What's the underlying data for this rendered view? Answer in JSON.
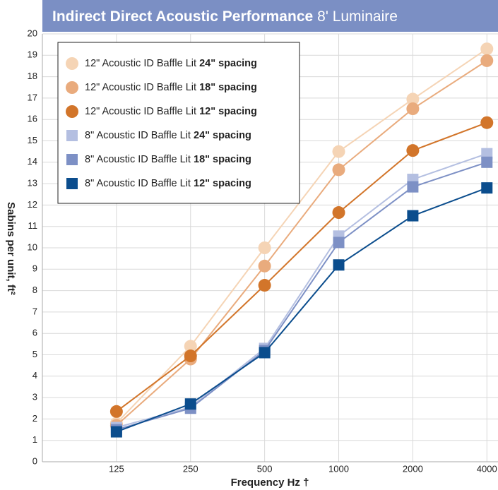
{
  "chart_data": {
    "type": "line",
    "title": "Indirect Direct Acoustic Performance",
    "subtitle": "8' Luminaire",
    "x_label": "Frequency Hz †",
    "y_label": "Sabins per unit, ft²",
    "categories": [
      "125",
      "250",
      "500",
      "1000",
      "2000",
      "4000"
    ],
    "ylim": [
      0,
      20
    ],
    "yticks": [
      0,
      1,
      2,
      3,
      4,
      5,
      6,
      7,
      8,
      9,
      10,
      11,
      12,
      13,
      14,
      15,
      16,
      17,
      18,
      19,
      20
    ],
    "grid": true,
    "legend": "upper left",
    "series": [
      {
        "name": "12\" Acoustic ID Baffle Lit 24\" spacing",
        "color": "#f5d4b5",
        "marker": "circle",
        "values": [
          1.8,
          5.4,
          10.0,
          14.5,
          16.95,
          19.3
        ]
      },
      {
        "name": "12\" Acoustic ID Baffle Lit 18\" spacing",
        "color": "#e9ab7d",
        "marker": "circle",
        "values": [
          1.7,
          4.8,
          9.15,
          13.65,
          16.5,
          18.75
        ]
      },
      {
        "name": "12\" Acoustic ID Baffle Lit 12\" spacing",
        "color": "#d2752a",
        "marker": "circle",
        "values": [
          2.35,
          4.95,
          8.25,
          11.65,
          14.55,
          15.85
        ]
      },
      {
        "name": "8\" Acoustic ID Baffle Lit 24\" spacing",
        "color": "#b4bfe1",
        "marker": "square",
        "values": [
          1.6,
          2.55,
          5.3,
          10.55,
          13.2,
          14.4
        ]
      },
      {
        "name": "8\" Acoustic ID Baffle Lit 18\" spacing",
        "color": "#7d90c5",
        "marker": "square",
        "values": [
          1.5,
          2.5,
          5.2,
          10.25,
          12.85,
          14.0
        ]
      },
      {
        "name": "8\" Acoustic ID Baffle Lit 12\" spacing",
        "color": "#0b4d8d",
        "marker": "square",
        "values": [
          1.4,
          2.7,
          5.1,
          9.2,
          11.5,
          12.8
        ]
      }
    ]
  }
}
